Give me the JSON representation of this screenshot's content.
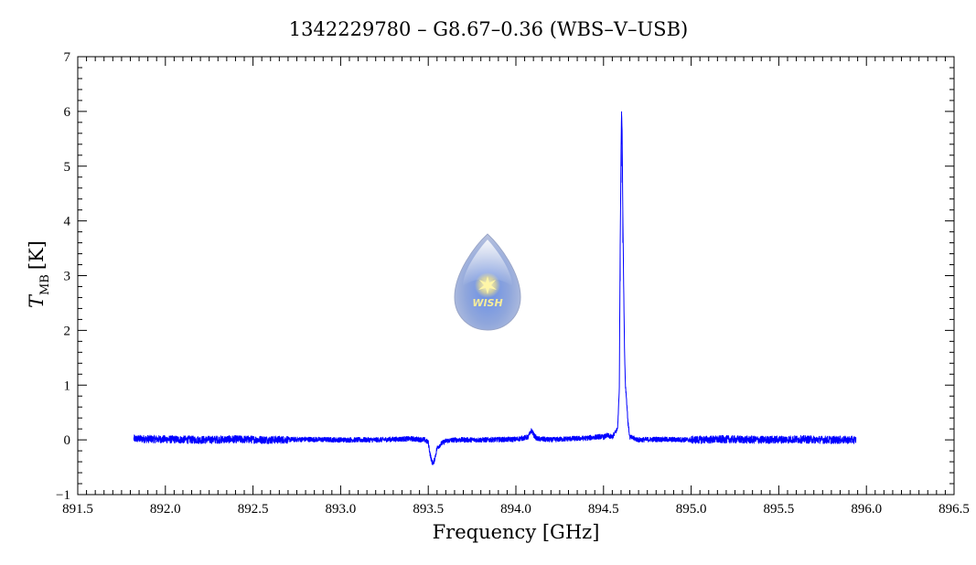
{
  "chart_data": {
    "type": "line",
    "title": "1342229780 – G8.67–0.36 (WBS–V–USB)",
    "xlabel": "Frequency [GHz]",
    "ylabel_main": "T",
    "ylabel_sub": "MB",
    "ylabel_unit": "[K]",
    "xlim": [
      891.5,
      896.5
    ],
    "ylim": [
      -1,
      7
    ],
    "xticks": [
      891.5,
      892.0,
      892.5,
      893.0,
      893.5,
      894.0,
      894.5,
      895.0,
      895.5,
      896.0,
      896.5
    ],
    "xtick_labels": [
      "891.5",
      "892.0",
      "892.5",
      "893.0",
      "893.5",
      "894.0",
      "894.5",
      "895.0",
      "895.5",
      "896.0",
      "896.5"
    ],
    "yticks": [
      -1,
      0,
      1,
      2,
      3,
      4,
      5,
      6,
      7
    ],
    "ytick_labels": [
      "−1",
      "0",
      "1",
      "2",
      "3",
      "4",
      "5",
      "6",
      "7"
    ],
    "grid": false,
    "line_color": "#0000ff",
    "series": [
      {
        "x": [
          891.82,
          892.0,
          892.2,
          892.4,
          892.6,
          892.8,
          893.0,
          893.2,
          893.4,
          893.48,
          893.5,
          893.51,
          893.52,
          893.53,
          893.54,
          893.55,
          893.57,
          893.6,
          893.65,
          893.8,
          894.0,
          894.07,
          894.09,
          894.1,
          894.12,
          894.2,
          894.3,
          894.4,
          894.48,
          894.5,
          894.52,
          894.55,
          894.58,
          894.59,
          894.595,
          894.6,
          894.603,
          894.606,
          894.61,
          894.615,
          894.62,
          894.625,
          894.63,
          894.64,
          894.65,
          894.7,
          894.8,
          895.0,
          895.2,
          895.4,
          895.6,
          895.8,
          895.94
        ],
        "y": [
          0.02,
          0.01,
          0.0,
          0.01,
          0.0,
          0.01,
          0.0,
          0.0,
          0.02,
          0.0,
          -0.05,
          -0.25,
          -0.4,
          -0.43,
          -0.3,
          -0.15,
          -0.08,
          -0.02,
          0.0,
          0.0,
          0.01,
          0.05,
          0.18,
          0.1,
          0.02,
          0.0,
          0.02,
          0.03,
          0.06,
          0.05,
          0.08,
          0.05,
          0.2,
          0.9,
          3.5,
          5.3,
          6.0,
          5.6,
          4.2,
          2.8,
          1.6,
          1.0,
          0.8,
          0.3,
          0.05,
          0.0,
          0.01,
          0.0,
          0.01,
          0.0,
          0.01,
          0.0,
          0.0
        ]
      }
    ],
    "logo_text": "WISH"
  }
}
